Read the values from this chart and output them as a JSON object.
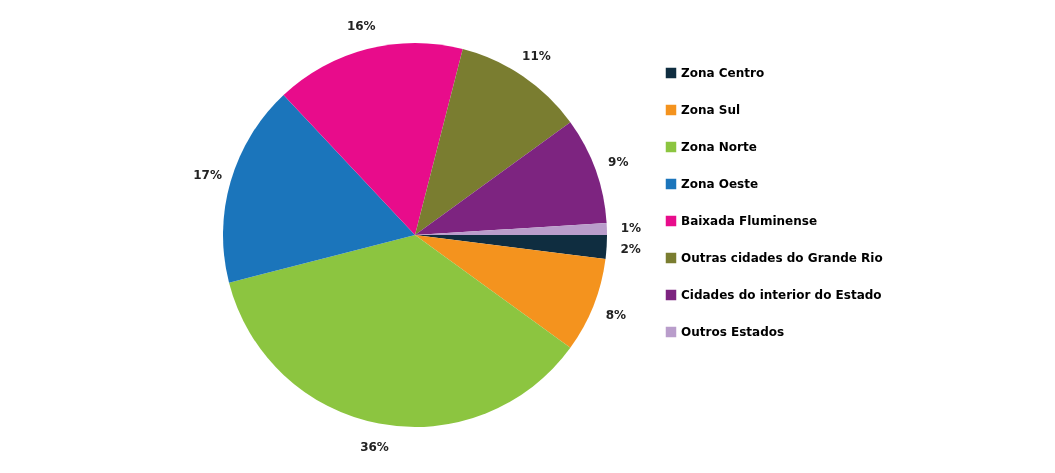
{
  "chart_data": {
    "type": "pie",
    "categories": [
      "Zona Centro",
      "Zona Sul",
      "Zona Norte",
      "Zona Oeste",
      "Baixada Fluminense",
      "Outras cidades do Grande Rio",
      "Cidades do interior do Estado",
      "Outros Estados"
    ],
    "values": [
      2,
      8,
      36,
      17,
      16,
      11,
      9,
      1
    ],
    "colors": [
      "#0f2d40",
      "#f4931e",
      "#8cc540",
      "#1b75bb",
      "#e80c8b",
      "#7a7d30",
      "#7d2480",
      "#b99dcb"
    ],
    "value_labels": [
      "2%",
      "8%",
      "36%",
      "17%",
      "16%",
      "11%",
      "9%",
      "1%"
    ],
    "legend": "right"
  }
}
